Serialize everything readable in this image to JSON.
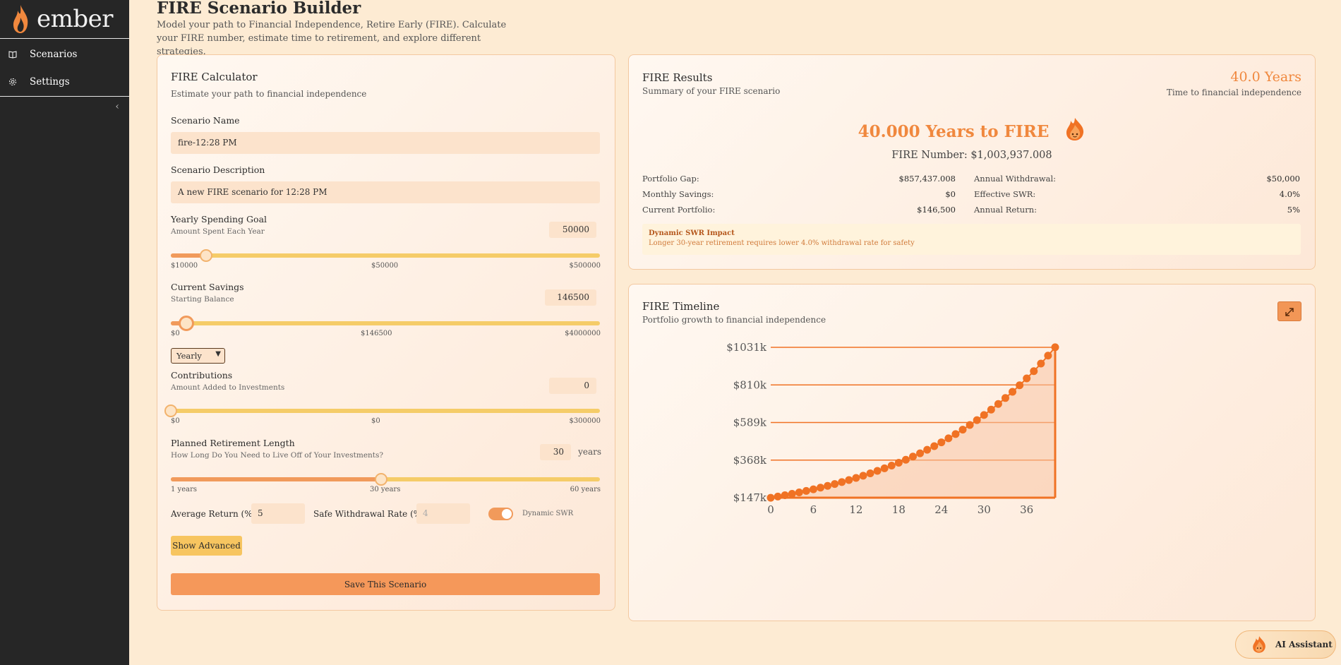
{
  "app": {
    "name": "ember"
  },
  "nav": {
    "items": [
      {
        "label": "Scenarios"
      },
      {
        "label": "Settings"
      }
    ],
    "collapse_icon": "chevron-left-icon"
  },
  "page": {
    "title": "FIRE Scenario Builder",
    "subtitle": "Model your path to Financial Independence, Retire Early (FIRE). Calculate your FIRE number, estimate time to retirement, and explore different strategies."
  },
  "calculator": {
    "title": "FIRE Calculator",
    "subtitle": "Estimate your path to financial independence",
    "scenario_name_label": "Scenario Name",
    "scenario_name_value": "fire-12:28 PM",
    "scenario_desc_label": "Scenario Description",
    "scenario_desc_value": "A new FIRE scenario for 12:28 PM",
    "spending": {
      "label": "Yearly Spending Goal",
      "sublabel": "Amount Spent Each Year",
      "value": "50000",
      "min": "$10000",
      "mid": "$50000",
      "max": "$500000",
      "level": 0.082
    },
    "savings": {
      "label": "Current Savings",
      "sublabel": "Starting Balance",
      "value": "146500",
      "min": "$0",
      "mid": "$146500",
      "max": "$4000000",
      "level": 0.037
    },
    "frequency": "Yearly",
    "contributions": {
      "label": "Contributions",
      "sublabel": "Amount Added to Investments",
      "value": "0",
      "min": "$0",
      "mid": "$0",
      "max": "$300000",
      "level": 0.0
    },
    "retirement": {
      "label": "Planned Retirement Length",
      "sublabel": "How Long Do You Need to Live Off of Your Investments?",
      "value": "30",
      "unit": "years",
      "min": "1 years",
      "mid": "30 years",
      "max": "60 years",
      "level": 0.49
    },
    "avg_return_label": "Average Return (%)",
    "avg_return_value": "5",
    "swr_label": "Safe Withdrawal Rate (%)",
    "swr_placeholder": "4",
    "dynamic_swr_label": "Dynamic SWR",
    "show_advanced_label": "Show Advanced",
    "save_label": "Save This Scenario"
  },
  "results": {
    "title": "FIRE Results",
    "subtitle": "Summary of your FIRE scenario",
    "years": "40.0 Years",
    "years_label": "Time to financial independence",
    "headline": "40.000 Years to FIRE",
    "fire_number": "FIRE Number: $1,003,937.008",
    "stats_left": [
      {
        "label": "Portfolio Gap:",
        "value": "$857,437.008"
      },
      {
        "label": "Monthly Savings:",
        "value": "$0"
      },
      {
        "label": "Current Portfolio:",
        "value": "$146,500"
      }
    ],
    "stats_right": [
      {
        "label": "Annual Withdrawal:",
        "value": "$50,000"
      },
      {
        "label": "Effective SWR:",
        "value": "4.0%"
      },
      {
        "label": "Annual Return:",
        "value": "5%"
      }
    ],
    "swr_impact_title": "Dynamic SWR Impact",
    "swr_impact_text": "Longer 30-year retirement requires lower 4.0% withdrawal rate for safety"
  },
  "timeline": {
    "title": "FIRE Timeline",
    "subtitle": "Portfolio growth to financial independence"
  },
  "chart_data": {
    "type": "area",
    "title": "",
    "xlabel": "",
    "ylabel": "",
    "x_ticks": [
      "0",
      "6",
      "12",
      "18",
      "24",
      "30",
      "36"
    ],
    "y_ticks": [
      "$147k",
      "$368k",
      "$589k",
      "$810k",
      "$1031k"
    ],
    "y_tick_values": [
      147,
      368,
      589,
      810,
      1031
    ],
    "xlim": [
      0,
      40
    ],
    "ylim": [
      147,
      1031
    ],
    "series": [
      {
        "x_start": 0,
        "x_end": 40,
        "start_value": 146.5,
        "growth_rate": 0.05
      }
    ],
    "accent": "#f07224"
  },
  "ai_assistant": {
    "label": "AI Assistant"
  },
  "colors": {
    "accent": "#f0883e",
    "sidebar": "#262626",
    "background": "#fdebd3"
  }
}
